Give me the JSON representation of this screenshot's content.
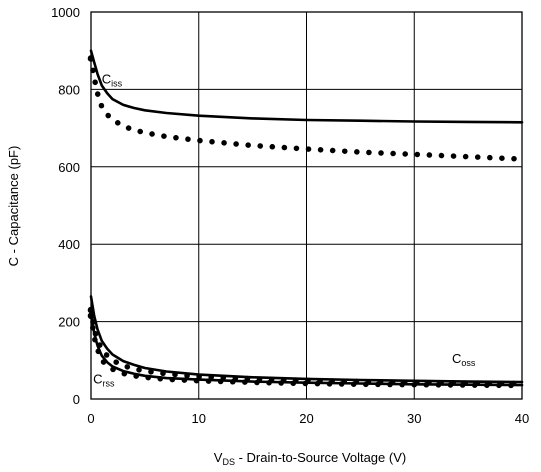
{
  "chart_data": {
    "type": "line",
    "title": "",
    "xlabel_main": "V",
    "xlabel_sub": "DS",
    "xlabel_rest": " - Drain-to-Source Voltage (V)",
    "ylabel": "C - Capacitance (pF)",
    "xlim": [
      0,
      40
    ],
    "ylim": [
      0,
      1000
    ],
    "x_ticks": [
      "0",
      "10",
      "20",
      "30",
      "40"
    ],
    "y_ticks": [
      "0",
      "200",
      "400",
      "600",
      "800",
      "1000"
    ],
    "grid": true,
    "series": [
      {
        "name": "Ciss",
        "style": "solid",
        "x": [
          0,
          0.3,
          0.6,
          1,
          1.5,
          2,
          3,
          4,
          5,
          7,
          10,
          15,
          20,
          25,
          30,
          35,
          40
        ],
        "y": [
          900,
          870,
          840,
          810,
          790,
          775,
          760,
          752,
          746,
          739,
          732,
          725,
          721,
          719,
          717,
          716,
          715
        ]
      },
      {
        "name": "Ciss",
        "style": "dotted",
        "x": [
          0,
          0.3,
          0.6,
          1,
          1.5,
          2,
          3,
          4,
          5,
          7,
          10,
          15,
          20,
          25,
          30,
          35,
          40
        ],
        "y": [
          880,
          830,
          790,
          755,
          735,
          722,
          705,
          695,
          688,
          678,
          668,
          655,
          646,
          638,
          632,
          626,
          620
        ]
      },
      {
        "name": "Coss",
        "style": "solid",
        "x": [
          0,
          0.3,
          0.6,
          1,
          1.5,
          2,
          3,
          4,
          5,
          7,
          10,
          15,
          20,
          25,
          30,
          35,
          40
        ],
        "y": [
          265,
          215,
          180,
          150,
          130,
          115,
          98,
          88,
          80,
          71,
          63,
          56,
          52,
          49,
          47,
          45,
          44
        ]
      },
      {
        "name": "Coss",
        "style": "dotted",
        "x": [
          0,
          0.3,
          0.6,
          1,
          1.5,
          2,
          3,
          4,
          5,
          7,
          10,
          15,
          20,
          25,
          30,
          35,
          40
        ],
        "y": [
          230,
          180,
          150,
          130,
          112,
          100,
          86,
          78,
          72,
          65,
          58,
          52,
          48,
          45,
          43,
          41,
          40
        ]
      },
      {
        "name": "Crss",
        "style": "solid",
        "x": [
          0,
          0.3,
          0.6,
          1,
          1.5,
          2,
          3,
          4,
          5,
          7,
          10,
          15,
          20,
          25,
          30,
          35,
          40
        ],
        "y": [
          225,
          170,
          138,
          112,
          95,
          84,
          72,
          65,
          60,
          54,
          50,
          45,
          42,
          40,
          38,
          37,
          36
        ]
      },
      {
        "name": "Crss",
        "style": "dotted",
        "x": [
          0,
          0.3,
          0.6,
          1,
          1.5,
          2,
          3,
          4,
          5,
          7,
          10,
          15,
          20,
          25,
          30,
          35,
          40
        ],
        "y": [
          215,
          160,
          128,
          100,
          86,
          77,
          66,
          60,
          56,
          51,
          47,
          43,
          40,
          38,
          37,
          36,
          35
        ]
      }
    ],
    "annotations": [
      {
        "main": "C",
        "sub": "iss",
        "x": 1.0,
        "y": 815
      },
      {
        "main": "C",
        "sub": "oss",
        "x": 33.5,
        "y": 93
      },
      {
        "main": "C",
        "sub": "rss",
        "x": 0.2,
        "y": 40
      }
    ]
  }
}
